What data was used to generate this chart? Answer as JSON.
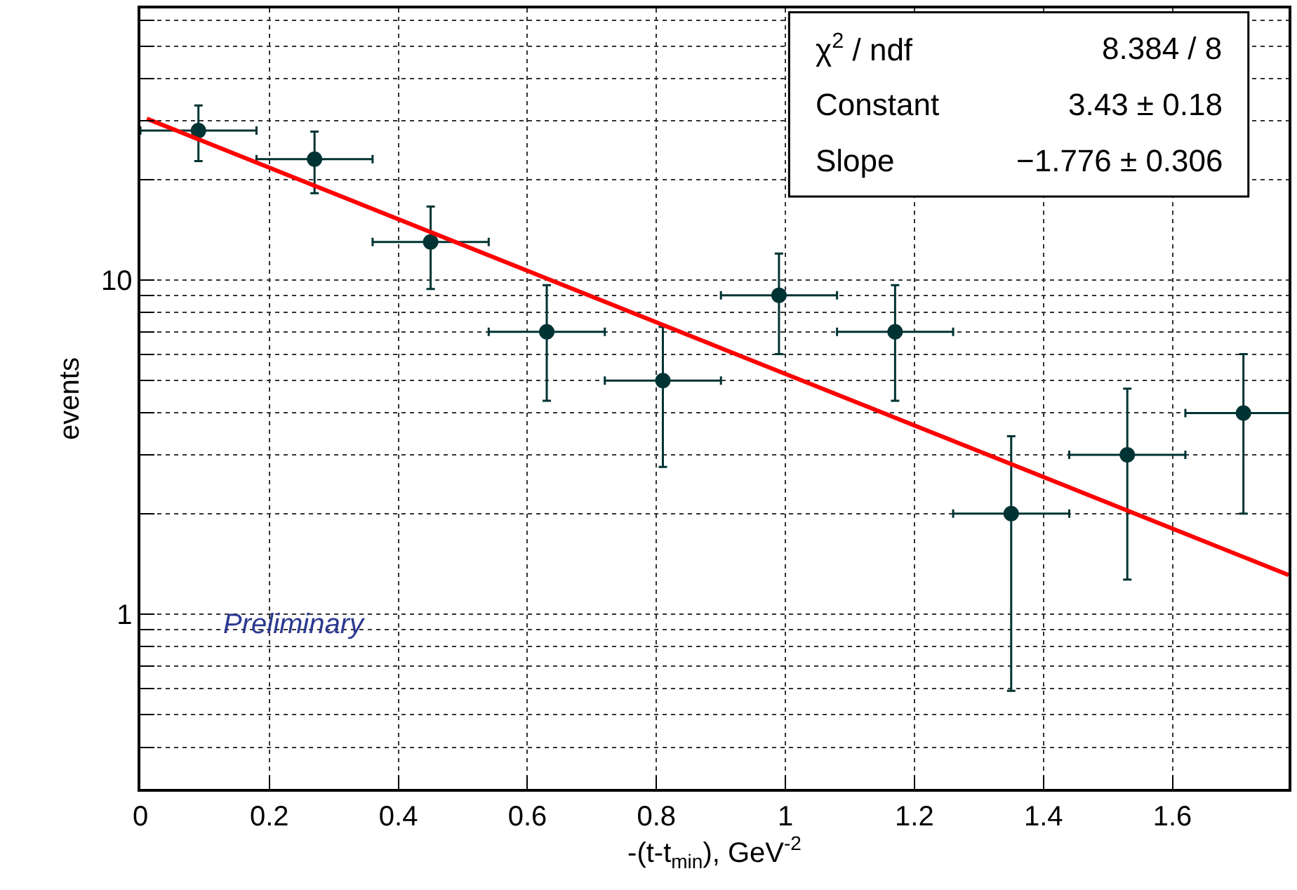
{
  "chart_data": {
    "type": "scatter",
    "xlabel": "-(t-t$_{min}$), GeV$^{-2}$",
    "ylabel": "events",
    "x": [
      0.09,
      0.27,
      0.45,
      0.63,
      0.81,
      0.99,
      1.17,
      1.35,
      1.53,
      1.71
    ],
    "series": [
      {
        "marker": "circle",
        "color": "#003333",
        "values": [
          28,
          23,
          13,
          7,
          5,
          9,
          7,
          2,
          3,
          4
        ],
        "errors": [
          5.3,
          4.8,
          3.6,
          2.65,
          2.24,
          3,
          2.65,
          1.41,
          1.73,
          2
        ],
        "xerrors": [
          0.09,
          0.09,
          0.09,
          0.09,
          0.09,
          0.09,
          0.09,
          0.09,
          0.09,
          0.09
        ]
      },
      {
        "type": "line",
        "marker": "none",
        "color": "#ff0000",
        "x": [
          0.01,
          1.78
        ],
        "values": [
          30.4,
          1.31
        ]
      }
    ],
    "log": "y",
    "xlim": [
      0,
      1.78
    ],
    "ylim": [
      0.3,
      65
    ],
    "xticks": [
      0,
      0.2,
      0.4,
      0.6,
      0.8,
      1,
      1.2,
      1.4,
      1.6
    ],
    "yticks": [
      {
        "value": 0.3,
        "label": null
      },
      {
        "value": 0.4,
        "label": null
      },
      {
        "value": 0.5,
        "label": null
      },
      {
        "value": 0.6,
        "label": null
      },
      {
        "value": 0.7,
        "label": null
      },
      {
        "value": 0.8,
        "label": null
      },
      {
        "value": 0.9,
        "label": null
      },
      1,
      {
        "value": 2,
        "label": null
      },
      {
        "value": 3,
        "label": null
      },
      {
        "value": 4,
        "label": null
      },
      {
        "value": 5,
        "label": null
      },
      {
        "value": 6,
        "label": null
      },
      {
        "value": 7,
        "label": null
      },
      {
        "value": 8,
        "label": null
      },
      {
        "value": 9,
        "label": null
      },
      10,
      {
        "value": 20,
        "label": null
      },
      {
        "value": 30,
        "label": null
      },
      {
        "value": 40,
        "label": null
      },
      {
        "value": 50,
        "label": null
      },
      {
        "value": 60,
        "label": null
      }
    ],
    "grid": true,
    "annotations": [
      "χ$^{2}$ / ndf",
      "8.384 / 8",
      "Constant",
      "3.43 ± 0.18",
      "Slope",
      "−1.776 ± 0.306",
      "Preliminary"
    ]
  }
}
